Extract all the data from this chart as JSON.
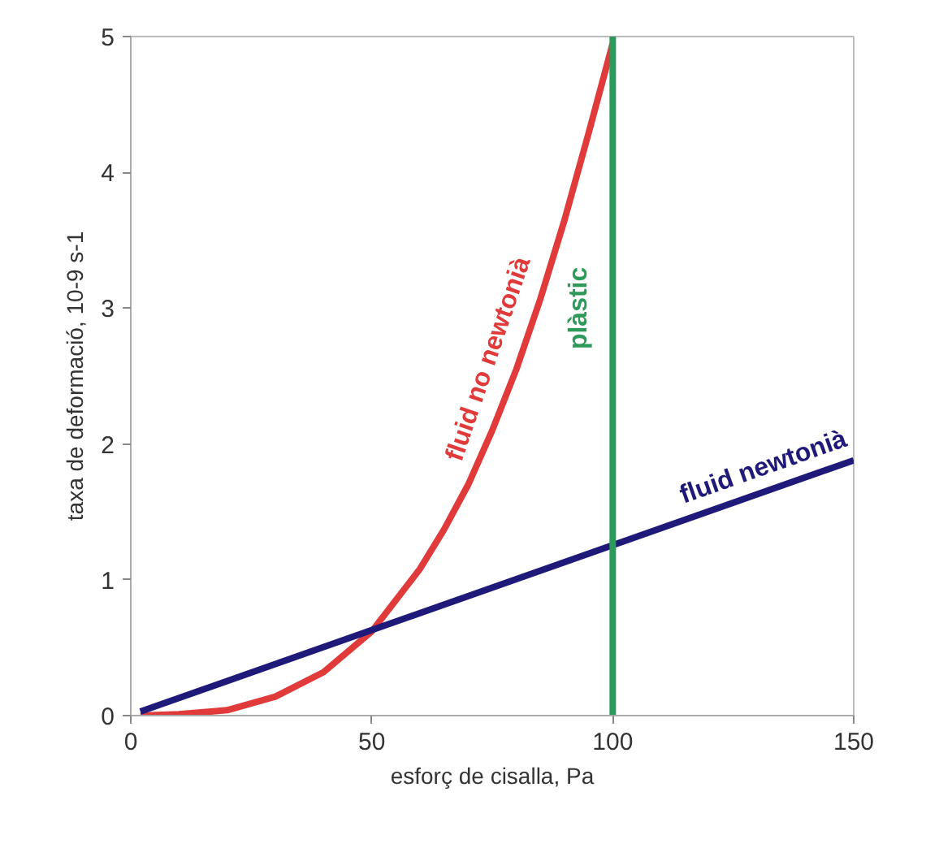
{
  "chart_data": {
    "type": "line",
    "xlabel": "esforç de cisalla, Pa",
    "ylabel": "taxa de deformació, 10-9 s-1",
    "xlim": [
      0,
      150
    ],
    "ylim": [
      0,
      5
    ],
    "xticks": [
      0,
      50,
      100,
      150
    ],
    "yticks": [
      0,
      1,
      2,
      3,
      4,
      5
    ],
    "grid": false,
    "marker": "none",
    "line_style": "solid",
    "series": [
      {
        "name": "fluid no newtonià",
        "color": "#e03a3a",
        "x": [
          2,
          10,
          20,
          30,
          40,
          50,
          60,
          65,
          70,
          75,
          80,
          85,
          90,
          95,
          100
        ],
        "values": [
          0,
          0.01,
          0.04,
          0.14,
          0.32,
          0.62,
          1.08,
          1.37,
          1.7,
          2.1,
          2.55,
          3.07,
          3.65,
          4.29,
          4.95
        ]
      },
      {
        "name": "fluid newtonià",
        "color": "#1f1a7a",
        "x": [
          2,
          150
        ],
        "values": [
          0.03,
          1.88
        ]
      },
      {
        "name": "plàstic",
        "color": "#2e9a5a",
        "x": [
          100,
          100
        ],
        "values": [
          0,
          5
        ]
      }
    ]
  }
}
